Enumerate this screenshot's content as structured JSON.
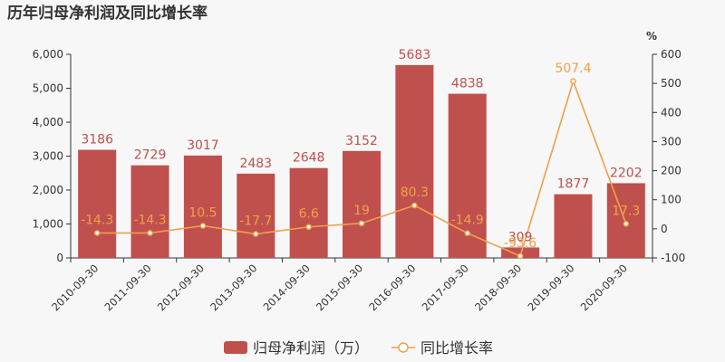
{
  "chart_data": {
    "type": "bar",
    "title": "历年归母净利润及同比增长率",
    "categories": [
      "2010-09-30",
      "2011-09-30",
      "2012-09-30",
      "2013-09-30",
      "2014-09-30",
      "2015-09-30",
      "2016-09-30",
      "2017-09-30",
      "2018-09-30",
      "2019-09-30",
      "2020-09-30"
    ],
    "series": [
      {
        "name": "归母净利润（万）",
        "type": "bar",
        "axis": "left",
        "color": "#c0504d",
        "values": [
          3186,
          2729,
          3017,
          2483,
          2648,
          3152,
          5683,
          4838,
          309,
          1877,
          2202
        ],
        "labels": [
          "3186",
          "2729",
          "3017",
          "2483",
          "2648",
          "3152",
          "5683",
          "4838",
          "309",
          "1877",
          "2202"
        ]
      },
      {
        "name": "同比增长率",
        "type": "line",
        "axis": "right",
        "color": "#f0a04b",
        "values": [
          -14.3,
          -14.3,
          10.5,
          -17.7,
          6.6,
          19,
          80.3,
          -14.9,
          -93.6,
          507.4,
          17.3
        ],
        "labels": [
          "-14.3",
          "-14.3",
          "10.5",
          "-17.7",
          "6.6",
          "19",
          "80.3",
          "-14.9",
          "-93.6",
          "507.4",
          "17.3"
        ]
      }
    ],
    "y_left": {
      "lim": [
        0,
        6000
      ],
      "ticks": [
        0,
        1000,
        2000,
        3000,
        4000,
        5000,
        6000
      ],
      "tick_labels": [
        "0",
        "1,000",
        "2,000",
        "3,000",
        "4,000",
        "5,000",
        "6,000"
      ]
    },
    "y_right": {
      "label": "%",
      "lim": [
        -100,
        600
      ],
      "ticks": [
        -100,
        0,
        100,
        200,
        300,
        400,
        500,
        600
      ],
      "tick_labels": [
        "-100",
        "0",
        "100",
        "200",
        "300",
        "400",
        "500",
        "600"
      ]
    },
    "grid": false,
    "legend_position": "bottom-center"
  }
}
